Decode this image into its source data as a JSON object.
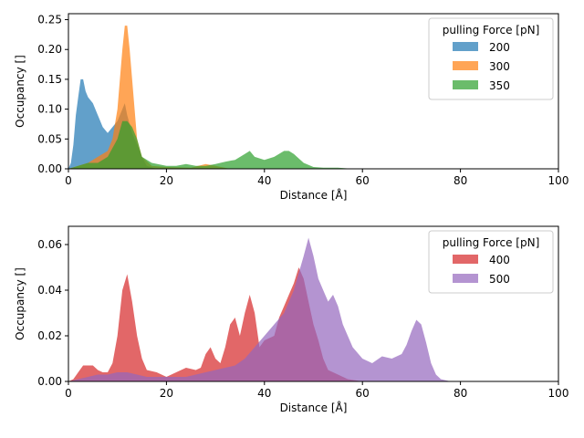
{
  "chart_data": [
    {
      "type": "area",
      "xlabel": "Distance [Å]",
      "ylabel": "Occupancy []",
      "xlim": [
        0,
        100
      ],
      "ylim": [
        0,
        0.26
      ],
      "xticks": [
        "0",
        "20",
        "40",
        "60",
        "80",
        "100"
      ],
      "yticks": [
        "0.00",
        "0.05",
        "0.10",
        "0.15",
        "0.20",
        "0.25"
      ],
      "legend": {
        "title": "pulling Force [pN]",
        "placement": "top-right"
      },
      "series": [
        {
          "name": "200",
          "color": "#1f77b4",
          "points": [
            [
              0,
              0.0
            ],
            [
              0.5,
              0.01
            ],
            [
              1,
              0.04
            ],
            [
              1.5,
              0.09
            ],
            [
              2,
              0.12
            ],
            [
              2.5,
              0.15
            ],
            [
              3,
              0.15
            ],
            [
              3.5,
              0.13
            ],
            [
              4,
              0.12
            ],
            [
              5,
              0.11
            ],
            [
              6,
              0.09
            ],
            [
              7,
              0.07
            ],
            [
              8,
              0.06
            ],
            [
              9,
              0.07
            ],
            [
              10,
              0.08
            ],
            [
              11,
              0.1
            ],
            [
              11.5,
              0.11
            ],
            [
              12,
              0.09
            ],
            [
              13,
              0.06
            ],
            [
              14,
              0.04
            ],
            [
              15,
              0.02
            ],
            [
              16,
              0.005
            ],
            [
              18,
              0.0
            ]
          ]
        },
        {
          "name": "300",
          "color": "#ff7f0e",
          "points": [
            [
              0,
              0.0
            ],
            [
              2,
              0.005
            ],
            [
              4,
              0.01
            ],
            [
              6,
              0.02
            ],
            [
              8,
              0.03
            ],
            [
              9,
              0.05
            ],
            [
              10,
              0.1
            ],
            [
              10.5,
              0.15
            ],
            [
              11,
              0.2
            ],
            [
              11.5,
              0.24
            ],
            [
              12,
              0.24
            ],
            [
              12.5,
              0.2
            ],
            [
              13,
              0.15
            ],
            [
              13.5,
              0.1
            ],
            [
              14,
              0.05
            ],
            [
              15,
              0.02
            ],
            [
              17,
              0.005
            ],
            [
              20,
              0.003
            ],
            [
              25,
              0.002
            ],
            [
              28,
              0.008
            ],
            [
              30,
              0.005
            ],
            [
              33,
              0.0
            ]
          ]
        },
        {
          "name": "350",
          "color": "#2ca02c",
          "points": [
            [
              0,
              0.0
            ],
            [
              2,
              0.005
            ],
            [
              4,
              0.01
            ],
            [
              6,
              0.01
            ],
            [
              8,
              0.02
            ],
            [
              10,
              0.05
            ],
            [
              11,
              0.08
            ],
            [
              12,
              0.08
            ],
            [
              13,
              0.07
            ],
            [
              14,
              0.05
            ],
            [
              15,
              0.02
            ],
            [
              17,
              0.01
            ],
            [
              20,
              0.005
            ],
            [
              22,
              0.005
            ],
            [
              24,
              0.008
            ],
            [
              26,
              0.005
            ],
            [
              28,
              0.005
            ],
            [
              30,
              0.008
            ],
            [
              32,
              0.012
            ],
            [
              34,
              0.015
            ],
            [
              36,
              0.025
            ],
            [
              37,
              0.03
            ],
            [
              38,
              0.02
            ],
            [
              40,
              0.015
            ],
            [
              42,
              0.02
            ],
            [
              44,
              0.03
            ],
            [
              45,
              0.03
            ],
            [
              46,
              0.025
            ],
            [
              48,
              0.01
            ],
            [
              50,
              0.003
            ],
            [
              52,
              0.002
            ],
            [
              55,
              0.002
            ],
            [
              58,
              0.0
            ]
          ]
        }
      ]
    },
    {
      "type": "area",
      "xlabel": "Distance [Å]",
      "ylabel": "Occupancy []",
      "xlim": [
        0,
        100
      ],
      "ylim": [
        0,
        0.068
      ],
      "xticks": [
        "0",
        "20",
        "40",
        "60",
        "80",
        "100"
      ],
      "yticks": [
        "0.00",
        "0.02",
        "0.04",
        "0.06"
      ],
      "legend": {
        "title": "pulling Force [pN]",
        "placement": "top-right"
      },
      "series": [
        {
          "name": "400",
          "color": "#d62728",
          "points": [
            [
              0,
              0.0
            ],
            [
              1,
              0.001
            ],
            [
              2,
              0.004
            ],
            [
              3,
              0.007
            ],
            [
              4,
              0.007
            ],
            [
              5,
              0.007
            ],
            [
              6,
              0.005
            ],
            [
              7,
              0.004
            ],
            [
              8,
              0.004
            ],
            [
              9,
              0.008
            ],
            [
              10,
              0.02
            ],
            [
              11,
              0.04
            ],
            [
              12,
              0.047
            ],
            [
              13,
              0.035
            ],
            [
              14,
              0.02
            ],
            [
              15,
              0.01
            ],
            [
              16,
              0.005
            ],
            [
              18,
              0.004
            ],
            [
              20,
              0.002
            ],
            [
              22,
              0.004
            ],
            [
              24,
              0.006
            ],
            [
              26,
              0.005
            ],
            [
              27,
              0.006
            ],
            [
              28,
              0.012
            ],
            [
              29,
              0.015
            ],
            [
              30,
              0.01
            ],
            [
              31,
              0.008
            ],
            [
              32,
              0.015
            ],
            [
              33,
              0.025
            ],
            [
              34,
              0.028
            ],
            [
              35,
              0.02
            ],
            [
              36,
              0.03
            ],
            [
              37,
              0.038
            ],
            [
              38,
              0.03
            ],
            [
              39,
              0.015
            ],
            [
              40,
              0.018
            ],
            [
              42,
              0.02
            ],
            [
              43,
              0.028
            ],
            [
              44,
              0.033
            ],
            [
              45,
              0.038
            ],
            [
              46,
              0.043
            ],
            [
              47,
              0.05
            ],
            [
              48,
              0.045
            ],
            [
              49,
              0.035
            ],
            [
              50,
              0.025
            ],
            [
              51,
              0.018
            ],
            [
              52,
              0.01
            ],
            [
              53,
              0.005
            ],
            [
              55,
              0.003
            ],
            [
              57,
              0.001
            ],
            [
              60,
              0.0
            ]
          ]
        },
        {
          "name": "500",
          "color": "#9467bd",
          "points": [
            [
              0,
              0.0
            ],
            [
              2,
              0.001
            ],
            [
              4,
              0.002
            ],
            [
              6,
              0.003
            ],
            [
              8,
              0.003
            ],
            [
              10,
              0.004
            ],
            [
              12,
              0.004
            ],
            [
              14,
              0.003
            ],
            [
              16,
              0.002
            ],
            [
              20,
              0.002
            ],
            [
              24,
              0.002
            ],
            [
              28,
              0.004
            ],
            [
              30,
              0.005
            ],
            [
              32,
              0.006
            ],
            [
              34,
              0.007
            ],
            [
              36,
              0.01
            ],
            [
              38,
              0.015
            ],
            [
              40,
              0.02
            ],
            [
              42,
              0.025
            ],
            [
              44,
              0.03
            ],
            [
              46,
              0.04
            ],
            [
              48,
              0.055
            ],
            [
              49,
              0.063
            ],
            [
              50,
              0.055
            ],
            [
              51,
              0.045
            ],
            [
              52,
              0.04
            ],
            [
              53,
              0.035
            ],
            [
              54,
              0.038
            ],
            [
              55,
              0.033
            ],
            [
              56,
              0.025
            ],
            [
              58,
              0.015
            ],
            [
              60,
              0.01
            ],
            [
              62,
              0.008
            ],
            [
              64,
              0.011
            ],
            [
              66,
              0.01
            ],
            [
              68,
              0.012
            ],
            [
              69,
              0.016
            ],
            [
              70,
              0.022
            ],
            [
              71,
              0.027
            ],
            [
              72,
              0.025
            ],
            [
              73,
              0.017
            ],
            [
              74,
              0.008
            ],
            [
              75,
              0.003
            ],
            [
              76,
              0.001
            ],
            [
              78,
              0.0
            ]
          ]
        }
      ]
    }
  ]
}
